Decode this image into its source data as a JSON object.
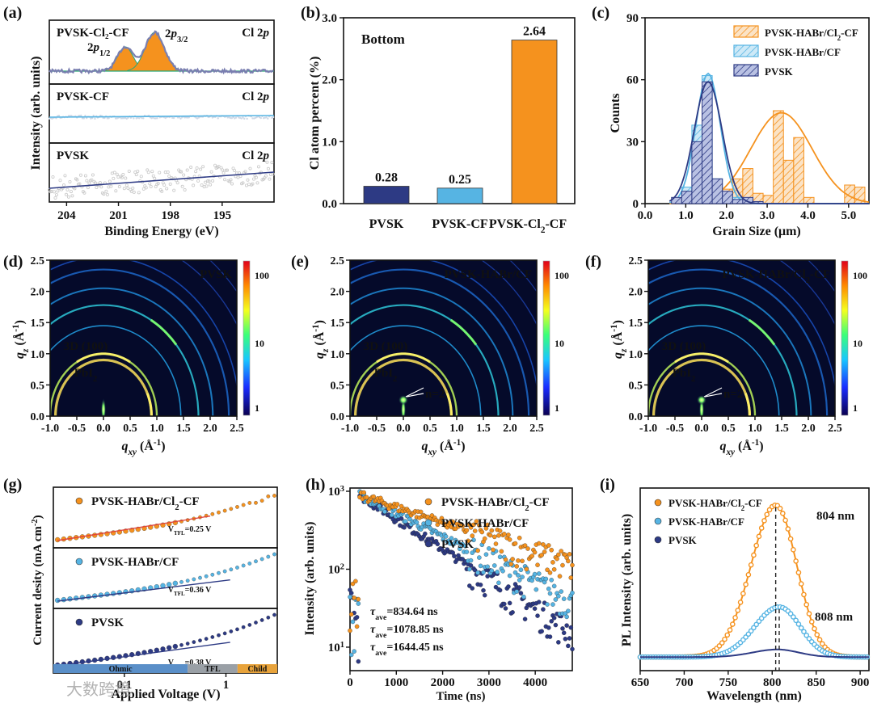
{
  "figure": {
    "watermark": "大数跨境",
    "panels": [
      {
        "label": "(a)",
        "id": "a"
      },
      {
        "label": "(b)",
        "id": "b"
      },
      {
        "label": "(c)",
        "id": "c"
      },
      {
        "label": "(d)",
        "id": "d"
      },
      {
        "label": "(e)",
        "id": "e"
      },
      {
        "label": "(f)",
        "id": "f"
      },
      {
        "label": "(g)",
        "id": "g"
      },
      {
        "label": "(h)",
        "id": "h"
      },
      {
        "label": "(i)",
        "id": "i"
      }
    ]
  },
  "colors": {
    "pvsk": "#2d3a84",
    "cf": "#56b4e3",
    "cl2cf": "#f5921e",
    "fit_red": "#e0453a"
  },
  "chart_data": [
    {
      "id": "a",
      "type": "line",
      "xlabel": "Binding Energy (eV)",
      "ylabel": "Intensity (arb. units)",
      "xlim": [
        205,
        192
      ],
      "xticks": [
        204,
        201,
        198,
        195
      ],
      "stacks": [
        {
          "name": "PVSK-Cl₂-CF",
          "tag": "Cl 2p",
          "peaks": [
            {
              "label": "2p1/2",
              "center": 200.6
            },
            {
              "label": "2p3/2",
              "center": 198.9
            }
          ]
        },
        {
          "name": "PVSK-CF",
          "tag": "Cl 2p"
        },
        {
          "name": "PVSK",
          "tag": "Cl 2p"
        }
      ]
    },
    {
      "id": "b",
      "type": "bar",
      "annotation": "Bottom",
      "categories": [
        "PVSK",
        "PVSK-CF",
        "PVSK-Cl₂-CF"
      ],
      "values": [
        0.28,
        0.25,
        2.64
      ],
      "value_labels": [
        "0.28",
        "0.25",
        "2.64"
      ],
      "ylabel": "Cl atom percent (%)",
      "ylim": [
        0,
        3.0
      ],
      "yticks": [
        "0.0",
        "1.0",
        "2.0",
        "3.0"
      ]
    },
    {
      "id": "c",
      "type": "bar",
      "xlabel": "Grain Size (μm)",
      "ylabel": "Counts",
      "xlim": [
        0,
        5.5
      ],
      "ylim": [
        0,
        90
      ],
      "xticks": [
        "0.0",
        "1.0",
        "2.0",
        "3.0",
        "4.0",
        "5.0"
      ],
      "yticks": [
        "0",
        "30",
        "60",
        "90"
      ],
      "series": [
        {
          "name": "PVSK-HABr/Cl₂-CF",
          "bins": [
            1.9,
            2.15,
            2.4,
            2.65,
            2.9,
            3.15,
            3.4,
            3.65,
            3.9,
            4.15,
            4.4,
            4.65,
            4.9,
            5.15
          ],
          "values": [
            7,
            12,
            17,
            5,
            4,
            45,
            21,
            32,
            3,
            0,
            0,
            0,
            9,
            8
          ],
          "mean": 3.35,
          "sigma": 0.75,
          "peak": 44
        },
        {
          "name": "PVSK-HABr/CF",
          "bins": [
            0.9,
            1.15,
            1.4,
            1.65,
            1.9,
            2.15,
            2.4
          ],
          "values": [
            8,
            38,
            62,
            12,
            5,
            3,
            0
          ],
          "mean": 1.55,
          "sigma": 0.3,
          "peak": 63
        },
        {
          "name": "PVSK",
          "bins": [
            0.65,
            0.9,
            1.15,
            1.4,
            1.65,
            1.9,
            2.15,
            2.4,
            2.65
          ],
          "values": [
            3,
            6,
            30,
            59,
            12,
            6,
            2,
            3,
            1
          ],
          "mean": 1.55,
          "sigma": 0.34,
          "peak": 59
        }
      ]
    },
    {
      "id": "d",
      "type": "heatmap",
      "name": "PVSK",
      "xlabel": "qxy (Å⁻¹)",
      "ylabel": "qz (Å⁻¹)",
      "xlim": [
        -1.0,
        2.5
      ],
      "ylim": [
        0,
        2.5
      ],
      "xticks": [
        "-1.0",
        "-0.5",
        "0.0",
        "0.5",
        "1.0",
        "1.5",
        "2.0",
        "2.5"
      ],
      "yticks": [
        "0.0",
        "0.5",
        "1.0",
        "1.5",
        "2.0",
        "2.5"
      ],
      "colorbar": [
        "1",
        "10",
        "100"
      ],
      "annotations": [
        "3D (100)",
        "PbI₂"
      ]
    },
    {
      "id": "e",
      "type": "heatmap",
      "name": "PVSK-HABr/CF",
      "xlabel": "qxy (Å⁻¹)",
      "ylabel": "qz (Å⁻¹)",
      "xlim": [
        -1.0,
        2.5
      ],
      "ylim": [
        0,
        2.5
      ],
      "xticks": [
        "-1.0",
        "-0.5",
        "0.0",
        "0.5",
        "1.0",
        "1.5",
        "2.0",
        "2.5"
      ],
      "yticks": [
        "0.0",
        "0.5",
        "1.0",
        "1.5",
        "2.0",
        "2.5"
      ],
      "colorbar": [
        "1",
        "10",
        "100"
      ],
      "annotations": [
        "3D (100)",
        "PbI₂",
        "n=2"
      ]
    },
    {
      "id": "f",
      "type": "heatmap",
      "name": "PVSK-HABr/Cl₂-CF",
      "xlabel": "qxy (Å⁻¹)",
      "ylabel": "qz (Å⁻¹)",
      "xlim": [
        -1.0,
        2.5
      ],
      "ylim": [
        0,
        2.5
      ],
      "xticks": [
        "-1.0",
        "-0.5",
        "0.0",
        "0.5",
        "1.0",
        "1.5",
        "2.0",
        "2.5"
      ],
      "yticks": [
        "0.0",
        "0.5",
        "1.0",
        "1.5",
        "2.0",
        "2.5"
      ],
      "colorbar": [
        "1",
        "10",
        "100"
      ],
      "annotations": [
        "3D (100)",
        "PbI₂",
        "n=2"
      ]
    },
    {
      "id": "g",
      "type": "scatter",
      "xlabel": "Applied Voltage (V)",
      "ylabel": "Current desity (mA cm⁻²)",
      "xscale": "log",
      "xlim": [
        0.02,
        3.2
      ],
      "xticks": [
        "0.1",
        "1"
      ],
      "regions": [
        "Ohmic",
        "TFL",
        "Child"
      ],
      "stacks": [
        {
          "name": "PVSK-HABr/Cl₂-CF",
          "vtfl": "V_TFL=0.25 V"
        },
        {
          "name": "PVSK-HABr/CF",
          "vtfl": "V_TFL=0.36 V"
        },
        {
          "name": "PVSK",
          "vtfl": "V_TFL=0.38 V"
        }
      ]
    },
    {
      "id": "h",
      "type": "scatter",
      "xlabel": "Time (ns)",
      "ylabel": "Intensity (arb. units)",
      "yscale": "log",
      "xlim": [
        0,
        4800
      ],
      "ylim": [
        5,
        1100
      ],
      "xticks": [
        "0",
        "1000",
        "2000",
        "3000",
        "4000"
      ],
      "yticks": [
        {
          "base": "10",
          "exp": "1"
        },
        {
          "base": "10",
          "exp": "2"
        },
        {
          "base": "10",
          "exp": "3"
        }
      ],
      "series": [
        {
          "name": "PVSK-HABr/Cl₂-CF",
          "tau": "τave=1644.45 ns",
          "tau_ns": 1644.45
        },
        {
          "name": "PVSK-HABr/CF",
          "tau": "τave=1078.85 ns",
          "tau_ns": 1078.85
        },
        {
          "name": "PVSK",
          "tau": "τave=834.64 ns",
          "tau_ns": 834.64
        }
      ]
    },
    {
      "id": "i",
      "type": "line",
      "xlabel": "Wavelength (nm)",
      "ylabel": "PL Intensity (arb. units)",
      "xlim": [
        650,
        910
      ],
      "xticks": [
        "650",
        "700",
        "750",
        "800",
        "850",
        "900"
      ],
      "series": [
        {
          "name": "PVSK-HABr/Cl₂-CF",
          "peak_nm": 804,
          "peak": 1.0
        },
        {
          "name": "PVSK-HABr/CF",
          "peak_nm": 808,
          "peak": 0.33
        },
        {
          "name": "PVSK",
          "peak_nm": 806,
          "peak": 0.05
        }
      ],
      "annotations": [
        "804 nm",
        "808 nm"
      ]
    }
  ]
}
